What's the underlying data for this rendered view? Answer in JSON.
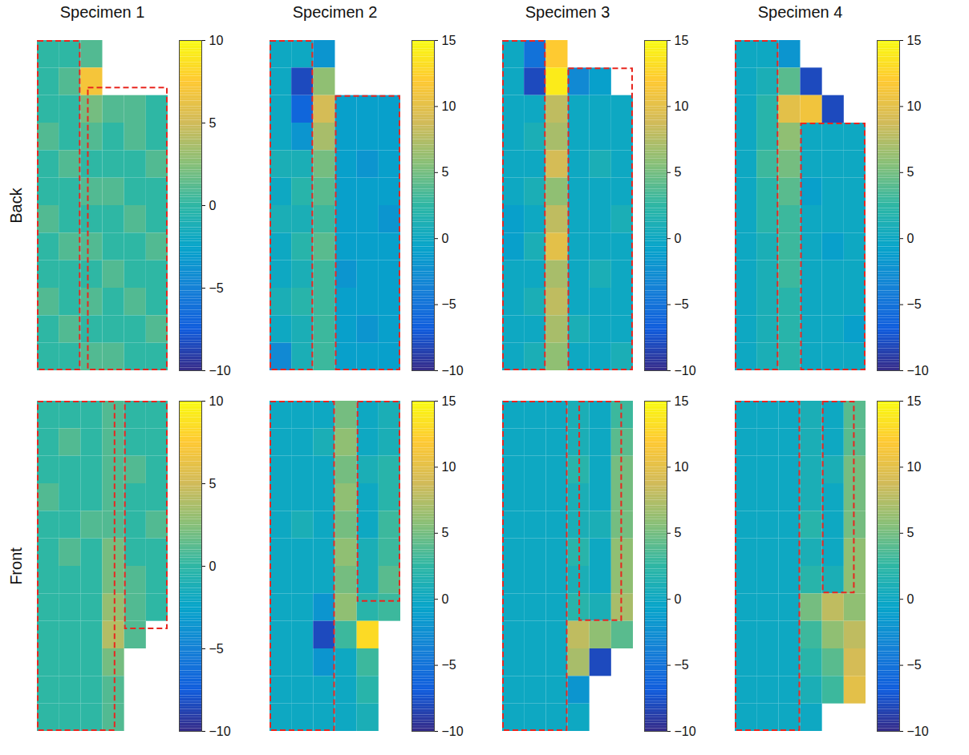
{
  "column_titles": [
    "Specimen 1",
    "Specimen 2",
    "Specimen 3",
    "Specimen 4"
  ],
  "row_titles": [
    "Back",
    "Front"
  ],
  "chart_data": [
    {
      "type": "heatmap",
      "tick_labels": false,
      "colorbar_range": [
        -10,
        10
      ],
      "colorbar_ticks": [
        -10,
        -5,
        0,
        5,
        10
      ],
      "cells": [
        [
          0,
          0,
          1,
          null,
          null,
          null
        ],
        [
          0,
          1,
          7,
          null,
          null,
          null
        ],
        [
          0,
          0,
          2,
          1,
          1,
          0
        ],
        [
          1,
          0,
          1,
          0,
          1,
          0
        ],
        [
          0,
          1,
          0,
          0,
          0,
          1
        ],
        [
          0,
          0,
          1,
          1,
          0,
          0
        ],
        [
          1,
          0,
          0,
          0,
          1,
          0
        ],
        [
          0,
          1,
          1,
          0,
          0,
          1
        ],
        [
          0,
          0,
          0,
          1,
          0,
          0
        ],
        [
          1,
          0,
          1,
          0,
          1,
          0
        ],
        [
          0,
          1,
          0,
          0,
          0,
          1
        ],
        [
          0,
          0,
          1,
          1,
          0,
          0
        ]
      ]
    },
    {
      "type": "heatmap",
      "tick_labels": false,
      "colorbar_range": [
        -10,
        15
      ],
      "colorbar_ticks": [
        -10,
        -5,
        0,
        5,
        10,
        15
      ],
      "cells": [
        [
          0,
          0,
          -2,
          null,
          null,
          null
        ],
        [
          0,
          -8,
          6,
          null,
          null,
          null
        ],
        [
          0,
          -6,
          9,
          -1,
          -1,
          -1
        ],
        [
          0,
          -2,
          7,
          -1,
          -1,
          -1
        ],
        [
          1,
          1,
          5,
          -1,
          -2,
          -1
        ],
        [
          0,
          2,
          4,
          -1,
          -1,
          -1
        ],
        [
          1,
          1,
          3,
          -1,
          -1,
          -2
        ],
        [
          0,
          2,
          4,
          -1,
          -1,
          -1
        ],
        [
          0,
          1,
          3,
          -2,
          -1,
          -1
        ],
        [
          1,
          2,
          3,
          -1,
          -1,
          -1
        ],
        [
          0,
          1,
          3,
          -1,
          -2,
          -1
        ],
        [
          -3,
          1,
          3,
          -1,
          -1,
          -1
        ]
      ]
    },
    {
      "type": "heatmap",
      "tick_labels": false,
      "colorbar_range": [
        -10,
        15
      ],
      "colorbar_ticks": [
        -10,
        -5,
        0,
        5,
        10,
        15
      ],
      "cells": [
        [
          0,
          -5,
          12,
          null,
          null,
          null
        ],
        [
          0,
          -8,
          14,
          -3,
          -1,
          null
        ],
        [
          0,
          0,
          8,
          0,
          0,
          0
        ],
        [
          0,
          1,
          7,
          0,
          0,
          0
        ],
        [
          0,
          0,
          9,
          0,
          1,
          0
        ],
        [
          0,
          1,
          6,
          0,
          0,
          0
        ],
        [
          -1,
          0,
          8,
          0,
          0,
          1
        ],
        [
          -1,
          1,
          10,
          0,
          0,
          0
        ],
        [
          0,
          0,
          7,
          0,
          1,
          0
        ],
        [
          0,
          1,
          8,
          0,
          0,
          0
        ],
        [
          0,
          0,
          7,
          1,
          0,
          0
        ],
        [
          0,
          1,
          6,
          0,
          0,
          1
        ]
      ]
    },
    {
      "type": "heatmap",
      "tick_labels": false,
      "colorbar_range": [
        -10,
        15
      ],
      "colorbar_ticks": [
        -10,
        -5,
        0,
        5,
        10,
        15
      ],
      "cells": [
        [
          0,
          0,
          -2,
          null,
          null,
          null
        ],
        [
          0,
          1,
          4,
          -8,
          null,
          null
        ],
        [
          0,
          2,
          10,
          11,
          -8,
          null
        ],
        [
          0,
          2,
          6,
          0,
          0,
          0
        ],
        [
          0,
          3,
          5,
          0,
          0,
          0
        ],
        [
          0,
          2,
          4,
          -1,
          0,
          0
        ],
        [
          0,
          2,
          3,
          0,
          0,
          0
        ],
        [
          0,
          1,
          3,
          0,
          -1,
          0
        ],
        [
          0,
          1,
          3,
          0,
          0,
          0
        ],
        [
          0,
          1,
          2,
          0,
          0,
          0
        ],
        [
          0,
          1,
          2,
          0,
          0,
          -1
        ],
        [
          0,
          1,
          2,
          0,
          0,
          0
        ]
      ]
    },
    {
      "type": "heatmap",
      "tick_labels": false,
      "colorbar_range": [
        -10,
        10
      ],
      "colorbar_ticks": [
        -10,
        -5,
        0,
        5,
        10
      ],
      "cells": [
        [
          0,
          0,
          0,
          1,
          0,
          0
        ],
        [
          0,
          1,
          0,
          1,
          0,
          0
        ],
        [
          0,
          0,
          0,
          1,
          1,
          0
        ],
        [
          1,
          0,
          0,
          1,
          0,
          0
        ],
        [
          0,
          0,
          1,
          1,
          0,
          1
        ],
        [
          0,
          1,
          0,
          2,
          0,
          0
        ],
        [
          0,
          0,
          0,
          2,
          1,
          0
        ],
        [
          0,
          0,
          0,
          3,
          1,
          0
        ],
        [
          0,
          0,
          0,
          4,
          1,
          null
        ],
        [
          0,
          0,
          0,
          2,
          null,
          null
        ],
        [
          0,
          0,
          0,
          1,
          null,
          null
        ],
        [
          0,
          0,
          0,
          1,
          null,
          null
        ]
      ]
    },
    {
      "type": "heatmap",
      "tick_labels": false,
      "colorbar_range": [
        -10,
        15
      ],
      "colorbar_ticks": [
        -10,
        -5,
        0,
        5,
        10,
        15
      ],
      "cells": [
        [
          0,
          0,
          0,
          5,
          0,
          1
        ],
        [
          0,
          0,
          1,
          6,
          0,
          1
        ],
        [
          0,
          0,
          0,
          5,
          1,
          2
        ],
        [
          0,
          0,
          0,
          6,
          0,
          2
        ],
        [
          0,
          1,
          0,
          5,
          0,
          3
        ],
        [
          0,
          0,
          0,
          6,
          1,
          3
        ],
        [
          0,
          0,
          0,
          5,
          1,
          4
        ],
        [
          0,
          0,
          -2,
          6,
          2,
          3
        ],
        [
          0,
          0,
          -8,
          3,
          13,
          null
        ],
        [
          0,
          0,
          -2,
          0,
          3,
          null
        ],
        [
          0,
          0,
          0,
          0,
          2,
          null
        ],
        [
          0,
          0,
          0,
          0,
          1,
          null
        ]
      ]
    },
    {
      "type": "heatmap",
      "tick_labels": false,
      "colorbar_range": [
        -10,
        15
      ],
      "colorbar_ticks": [
        -10,
        -5,
        0,
        5,
        10,
        15
      ],
      "cells": [
        [
          0,
          0,
          0,
          1,
          0,
          3
        ],
        [
          0,
          0,
          0,
          1,
          0,
          4
        ],
        [
          0,
          0,
          0,
          2,
          0,
          5
        ],
        [
          0,
          0,
          0,
          1,
          0,
          5
        ],
        [
          0,
          0,
          0,
          1,
          1,
          5
        ],
        [
          0,
          0,
          0,
          2,
          0,
          6
        ],
        [
          0,
          0,
          0,
          1,
          0,
          6
        ],
        [
          0,
          0,
          0,
          2,
          1,
          7
        ],
        [
          0,
          0,
          0,
          8,
          6,
          4
        ],
        [
          0,
          0,
          0,
          7,
          -8,
          null
        ],
        [
          0,
          0,
          0,
          -2,
          null,
          null
        ],
        [
          0,
          0,
          0,
          0,
          null,
          null
        ]
      ]
    },
    {
      "type": "heatmap",
      "tick_labels": false,
      "colorbar_range": [
        -10,
        15
      ],
      "colorbar_ticks": [
        -10,
        -5,
        0,
        5,
        10,
        15
      ],
      "cells": [
        [
          0,
          0,
          0,
          1,
          0,
          4
        ],
        [
          0,
          0,
          0,
          1,
          0,
          4
        ],
        [
          0,
          0,
          0,
          1,
          1,
          5
        ],
        [
          0,
          0,
          0,
          1,
          0,
          5
        ],
        [
          0,
          0,
          0,
          2,
          0,
          5
        ],
        [
          0,
          0,
          0,
          1,
          0,
          6
        ],
        [
          0,
          0,
          0,
          2,
          1,
          6
        ],
        [
          0,
          0,
          0,
          5,
          8,
          6
        ],
        [
          0,
          0,
          0,
          3,
          6,
          8
        ],
        [
          0,
          0,
          0,
          2,
          4,
          9
        ],
        [
          0,
          0,
          0,
          1,
          3,
          10
        ],
        [
          0,
          0,
          0,
          0,
          null,
          null
        ]
      ]
    }
  ]
}
